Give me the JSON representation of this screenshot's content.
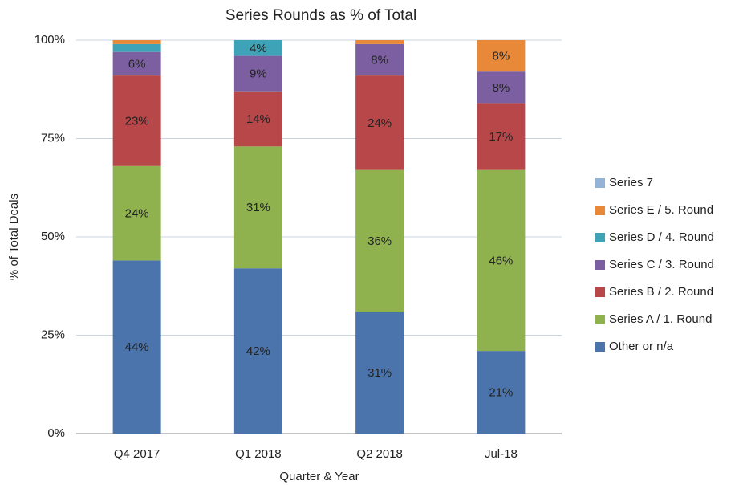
{
  "chart_data": {
    "type": "stacked_bar",
    "title": "Series Rounds as % of Total",
    "x_label": "Quarter & Year",
    "y_label": "% of Total Deals",
    "categories": [
      "Q4 2017",
      "Q1 2018",
      "Q2 2018",
      "Jul-18"
    ],
    "series": [
      {
        "name": "Other or n/a",
        "color": "#4a74ab",
        "values": [
          44,
          42,
          31,
          21
        ],
        "value_labels": [
          "44%",
          "42%",
          "31%",
          "21%"
        ]
      },
      {
        "name": "Series A / 1. Round",
        "color": "#8fb24f",
        "values": [
          24,
          31,
          36,
          46
        ],
        "value_labels": [
          "24%",
          "31%",
          "36%",
          "46%"
        ]
      },
      {
        "name": "Series B / 2. Round",
        "color": "#b8474a",
        "values": [
          23,
          14,
          24,
          17
        ],
        "value_labels": [
          "23%",
          "14%",
          "24%",
          "17%"
        ]
      },
      {
        "name": "Series C / 3. Round",
        "color": "#7b5fa0",
        "values": [
          6,
          9,
          8,
          8
        ],
        "value_labels": [
          "6%",
          "9%",
          "8%",
          "8%"
        ]
      },
      {
        "name": "Series D / 4. Round",
        "color": "#3fa3b8",
        "values": [
          2,
          4,
          0,
          0
        ],
        "value_labels": [
          null,
          "4%",
          null,
          null
        ]
      },
      {
        "name": "Series E / 5. Round",
        "color": "#e8893a",
        "values": [
          1,
          0,
          1,
          8
        ],
        "value_labels": [
          null,
          null,
          null,
          "8%"
        ]
      },
      {
        "name": "Series 7",
        "color": "#95b3d7",
        "values": [
          0,
          0,
          0,
          0
        ],
        "value_labels": [
          null,
          null,
          null,
          null
        ]
      }
    ],
    "ylim": [
      0,
      100
    ],
    "yticks": [
      {
        "value": 0,
        "label": "0%"
      },
      {
        "value": 25,
        "label": "25%"
      },
      {
        "value": 50,
        "label": "50%"
      },
      {
        "value": 75,
        "label": "75%"
      },
      {
        "value": 100,
        "label": "100%"
      }
    ],
    "grid": true,
    "legend": "right"
  }
}
